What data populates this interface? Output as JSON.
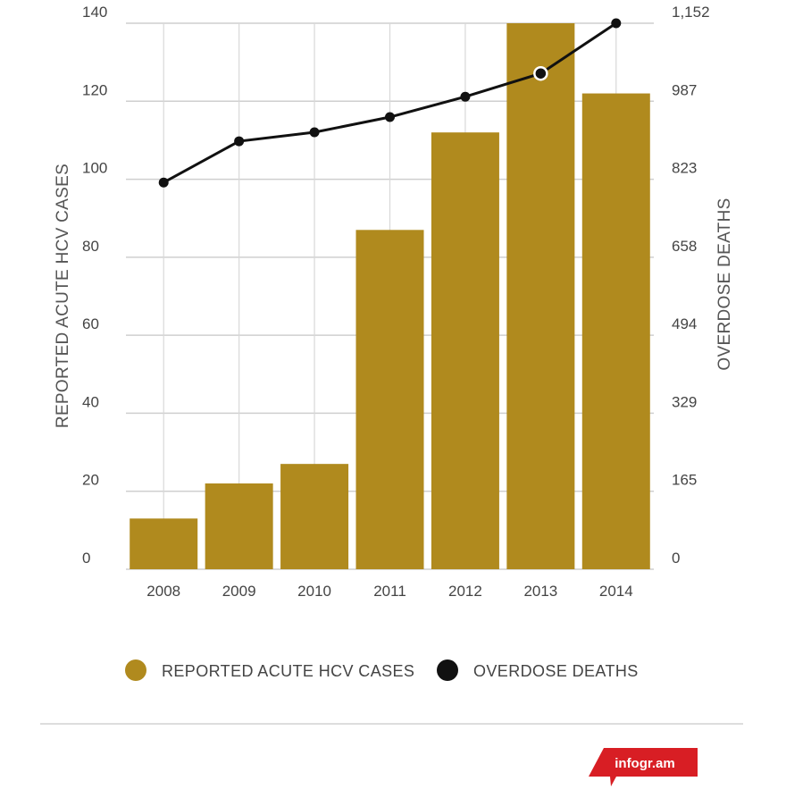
{
  "chart_data": {
    "type": "bar",
    "categories": [
      "2008",
      "2009",
      "2010",
      "2011",
      "2012",
      "2013",
      "2014"
    ],
    "series": [
      {
        "name": "REPORTED ACUTE HCV CASES",
        "type": "bar",
        "axis": "left",
        "color": "#b08a1e",
        "values": [
          13,
          22,
          27,
          87,
          112,
          140,
          122
        ]
      },
      {
        "name": "OVERDOSE DEATHS",
        "type": "line",
        "axis": "right",
        "color": "#111111",
        "values": [
          816,
          903,
          922,
          954,
          997,
          1046,
          1152
        ]
      }
    ],
    "ylabel": "REPORTED ACUTE HCV CASES",
    "y2label": "OVERDOSE DEATHS",
    "ylim": [
      0,
      140
    ],
    "y2lim": [
      0,
      1152
    ],
    "yticks": [
      "0",
      "20",
      "40",
      "60",
      "80",
      "100",
      "120",
      "140"
    ],
    "y2ticks": [
      "0",
      "165",
      "329",
      "494",
      "658",
      "823",
      "987",
      "1,152"
    ],
    "grid": true,
    "legend": "bottom",
    "highlighted_point": "2013"
  },
  "branding": {
    "logo_text": "infogr.am",
    "logo_color": "#d81e24"
  }
}
